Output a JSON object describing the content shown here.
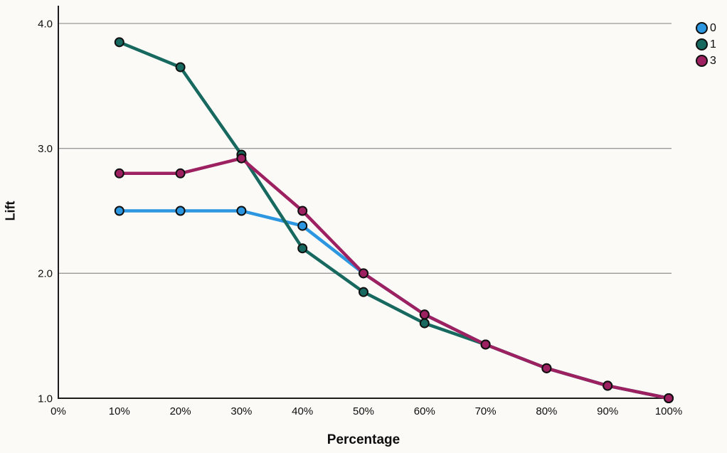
{
  "chart_data": {
    "type": "line",
    "title": "",
    "xlabel": "Percentage",
    "ylabel": "Lift",
    "xlim": [
      0,
      100
    ],
    "ylim": [
      1.0,
      4.0
    ],
    "grid": true,
    "gridline_values": [
      2.0,
      3.0,
      4.0
    ],
    "x_tick_values": [
      0,
      10,
      20,
      30,
      40,
      50,
      60,
      70,
      80,
      90,
      100
    ],
    "x_tick_labels": [
      "0%",
      "10%",
      "20%",
      "30%",
      "40%",
      "50%",
      "60%",
      "70%",
      "80%",
      "90%",
      "100%"
    ],
    "y_tick_values": [
      1.0,
      2.0,
      3.0,
      4.0
    ],
    "y_tick_labels": [
      "1.0",
      "2.0",
      "3.0",
      "4.0"
    ],
    "x": [
      10,
      20,
      30,
      40,
      50,
      60,
      70,
      80,
      90,
      100
    ],
    "series": [
      {
        "name": "0",
        "color": "#2C97E0",
        "values": [
          2.5,
          2.5,
          2.5,
          2.38,
          2.0,
          1.67,
          1.43,
          1.24,
          1.1,
          1.0
        ]
      },
      {
        "name": "1",
        "color": "#17695F",
        "values": [
          3.85,
          3.65,
          2.95,
          2.2,
          1.85,
          1.6,
          1.43,
          1.24,
          1.1,
          1.0
        ]
      },
      {
        "name": "3",
        "color": "#9D2161",
        "values": [
          2.8,
          2.8,
          2.92,
          2.5,
          2.0,
          1.67,
          1.43,
          1.24,
          1.1,
          1.0
        ]
      }
    ],
    "legend_position": "top-right"
  },
  "colors": {
    "background": "#fbfaf7",
    "axis": "#1c1c1c",
    "gridline": "#999999",
    "text": "#0d0d0d",
    "marker_outline": "#101010"
  }
}
